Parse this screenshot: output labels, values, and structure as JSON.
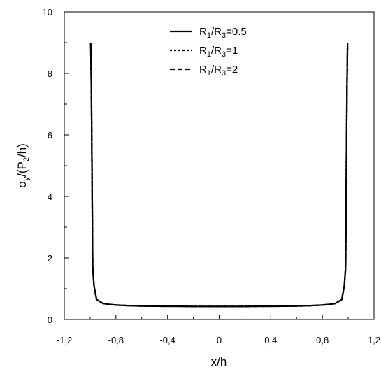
{
  "chart_data": {
    "type": "line",
    "xlabel": "x/h",
    "ylabel": {
      "base": "σ",
      "sub1": "y",
      "mid": "/(P",
      "sub2": "2",
      "end": "/h)"
    },
    "xlim": [
      -1.2,
      1.2
    ],
    "ylim": [
      0,
      10
    ],
    "x_ticks": [
      -1.2,
      -0.8,
      -0.4,
      0,
      0.4,
      0.8,
      1.2
    ],
    "x_tick_labels": [
      "-1,2",
      "-0,8",
      "-0,4",
      "0",
      "0,4",
      "0,8",
      "1,2"
    ],
    "y_ticks": [
      0,
      2,
      4,
      6,
      8,
      10
    ],
    "y_tick_labels": [
      "0",
      "2",
      "4",
      "6",
      "8",
      "10"
    ],
    "grid": false,
    "legend_position": "top-center",
    "series": [
      {
        "name": "R1/R3=0.5",
        "label": {
          "a": "R",
          "s1": "1",
          "b": "/R",
          "s2": "3",
          "c": "=0.5"
        },
        "dash": "solid",
        "x": [
          -0.995,
          -0.99,
          -0.985,
          -0.98,
          -0.97,
          -0.95,
          -0.9,
          -0.85,
          -0.8,
          -0.7,
          -0.6,
          -0.5,
          -0.4,
          -0.3,
          -0.2,
          -0.1,
          0,
          0.1,
          0.2,
          0.3,
          0.4,
          0.5,
          0.6,
          0.7,
          0.8,
          0.85,
          0.9,
          0.95,
          0.97,
          0.98,
          0.985,
          0.99,
          0.995
        ],
        "y": [
          9.0,
          7.4,
          4.6,
          1.7,
          1.1,
          0.65,
          0.52,
          0.49,
          0.47,
          0.45,
          0.44,
          0.435,
          0.43,
          0.43,
          0.425,
          0.425,
          0.425,
          0.425,
          0.425,
          0.43,
          0.43,
          0.435,
          0.44,
          0.45,
          0.47,
          0.49,
          0.52,
          0.65,
          1.1,
          1.7,
          4.6,
          7.4,
          9.0
        ]
      },
      {
        "name": "R1/R3=1",
        "label": {
          "a": "R",
          "s1": "1",
          "b": "/R",
          "s2": "3",
          "c": "=1"
        },
        "dash": "dotted",
        "x": [
          -0.995,
          -0.99,
          -0.985,
          -0.98,
          -0.97,
          -0.95,
          -0.9,
          -0.85,
          -0.8,
          -0.7,
          -0.6,
          -0.5,
          -0.4,
          -0.3,
          -0.2,
          -0.1,
          0,
          0.1,
          0.2,
          0.3,
          0.4,
          0.5,
          0.6,
          0.7,
          0.8,
          0.85,
          0.9,
          0.95,
          0.97,
          0.98,
          0.985,
          0.99,
          0.995
        ],
        "y": [
          9.0,
          7.4,
          4.6,
          1.7,
          1.1,
          0.65,
          0.52,
          0.49,
          0.47,
          0.45,
          0.44,
          0.435,
          0.43,
          0.43,
          0.425,
          0.425,
          0.425,
          0.425,
          0.425,
          0.43,
          0.43,
          0.435,
          0.44,
          0.45,
          0.47,
          0.49,
          0.52,
          0.65,
          1.1,
          1.7,
          4.6,
          7.4,
          9.0
        ]
      },
      {
        "name": "R1/R3=2",
        "label": {
          "a": "R",
          "s1": "1",
          "b": "/R",
          "s2": "3",
          "c": "=2"
        },
        "dash": "dashed",
        "x": [
          -0.995,
          -0.99,
          -0.985,
          -0.98,
          -0.97,
          -0.95,
          -0.9,
          -0.85,
          -0.8,
          -0.7,
          -0.6,
          -0.5,
          -0.4,
          -0.3,
          -0.2,
          -0.1,
          0,
          0.1,
          0.2,
          0.3,
          0.4,
          0.5,
          0.6,
          0.7,
          0.8,
          0.85,
          0.9,
          0.95,
          0.97,
          0.98,
          0.985,
          0.99,
          0.995
        ],
        "y": [
          9.0,
          7.4,
          4.6,
          1.7,
          1.1,
          0.65,
          0.52,
          0.49,
          0.47,
          0.45,
          0.44,
          0.435,
          0.43,
          0.43,
          0.425,
          0.425,
          0.425,
          0.425,
          0.425,
          0.43,
          0.43,
          0.435,
          0.44,
          0.45,
          0.47,
          0.49,
          0.52,
          0.65,
          1.1,
          1.7,
          4.6,
          7.4,
          9.0
        ]
      }
    ]
  }
}
